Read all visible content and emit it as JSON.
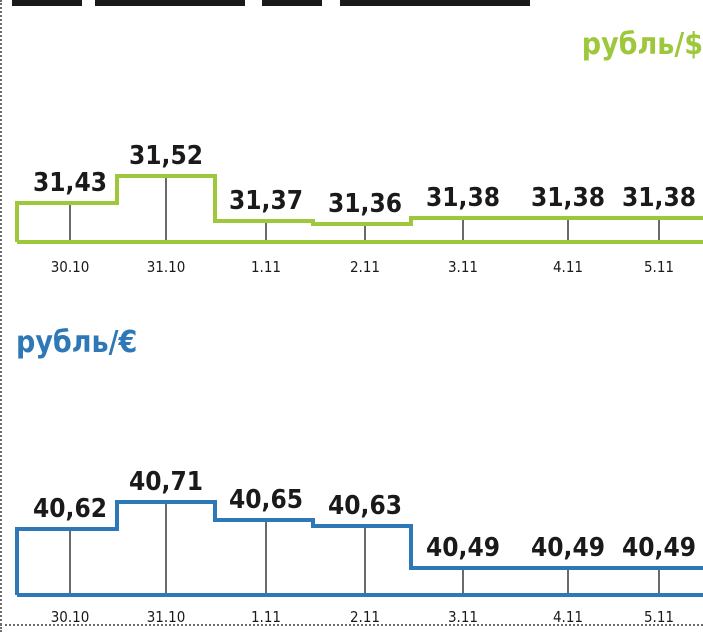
{
  "chart_data": [
    {
      "type": "line",
      "title": "рубль/$",
      "title_color": "#9dc83c",
      "line_color": "#9dc83c",
      "categories": [
        "30.10",
        "31.10",
        "1.11",
        "2.11",
        "3.11",
        "4.11",
        "5.11"
      ],
      "values": [
        31.43,
        31.52,
        31.37,
        31.36,
        31.38,
        31.38,
        31.38
      ],
      "labels": [
        "31,43",
        "31,52",
        "31,37",
        "31,36",
        "31,38",
        "31,38",
        "31,38"
      ]
    },
    {
      "type": "line",
      "title": "рубль/€",
      "title_color": "#2e78b7",
      "line_color": "#2e78b7",
      "categories": [
        "30.10",
        "31.10",
        "1.11",
        "2.11",
        "3.11",
        "4.11",
        "5.11"
      ],
      "values": [
        40.62,
        40.71,
        40.65,
        40.63,
        40.49,
        40.49,
        40.49
      ],
      "labels": [
        "40,62",
        "40,71",
        "40,65",
        "40,63",
        "40,49",
        "40,49",
        "40,49"
      ]
    }
  ]
}
